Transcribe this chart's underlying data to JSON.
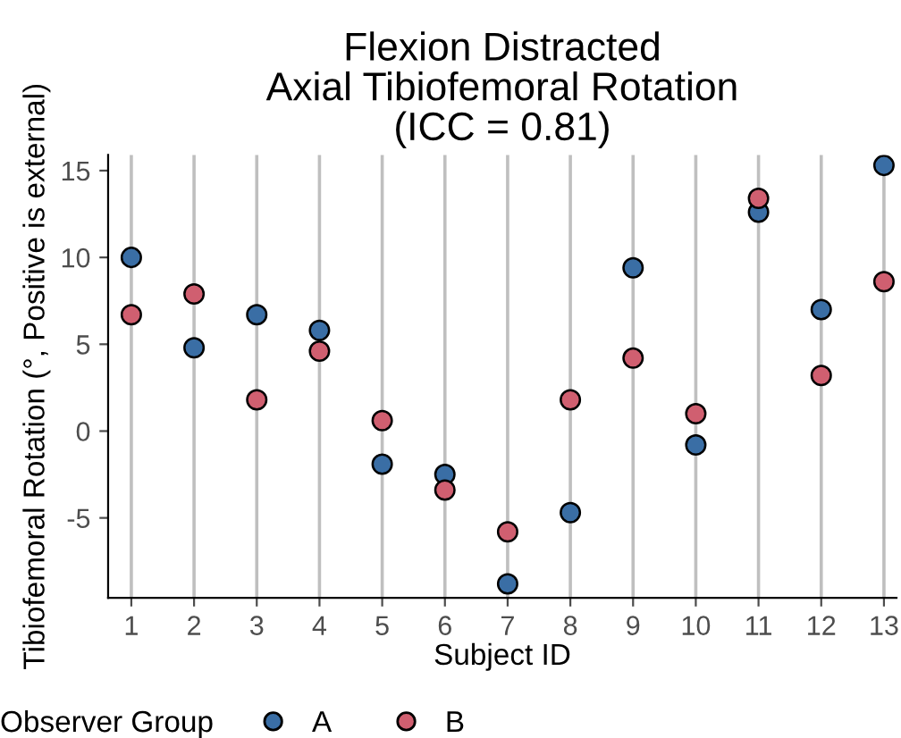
{
  "chart_data": {
    "type": "scatter",
    "title": "Flexion Distracted\nAxial Tibiofemoral Rotation\n(ICC = 0.81)",
    "xlabel": "Subject ID",
    "ylabel": "Tibiofemoral Rotation (°, Positive is external)",
    "legend_title": "Observer Group",
    "legend": "bottom",
    "grid": "x",
    "marker": "circle",
    "x": [
      1,
      2,
      3,
      4,
      5,
      6,
      7,
      8,
      9,
      10,
      11,
      12,
      13
    ],
    "series": [
      {
        "name": "A",
        "color": "#3a6ea5",
        "values": [
          10.0,
          4.8,
          6.7,
          5.8,
          -1.9,
          -2.5,
          -8.8,
          -4.7,
          9.4,
          -0.8,
          12.6,
          7.0,
          15.3
        ]
      },
      {
        "name": "B",
        "color": "#d05f70",
        "values": [
          6.7,
          7.9,
          1.8,
          4.6,
          0.6,
          -3.4,
          -5.8,
          1.8,
          4.2,
          1.0,
          13.4,
          3.2,
          8.6
        ]
      }
    ],
    "xlim": [
      0.63,
      13.2
    ],
    "ylim": [
      -9.6,
      15.9
    ],
    "xticks": [
      1,
      2,
      3,
      4,
      5,
      6,
      7,
      8,
      9,
      10,
      11,
      12,
      13
    ],
    "yticks": [
      {
        "value": -5,
        "label": "-5"
      },
      0,
      5,
      10,
      15
    ]
  }
}
